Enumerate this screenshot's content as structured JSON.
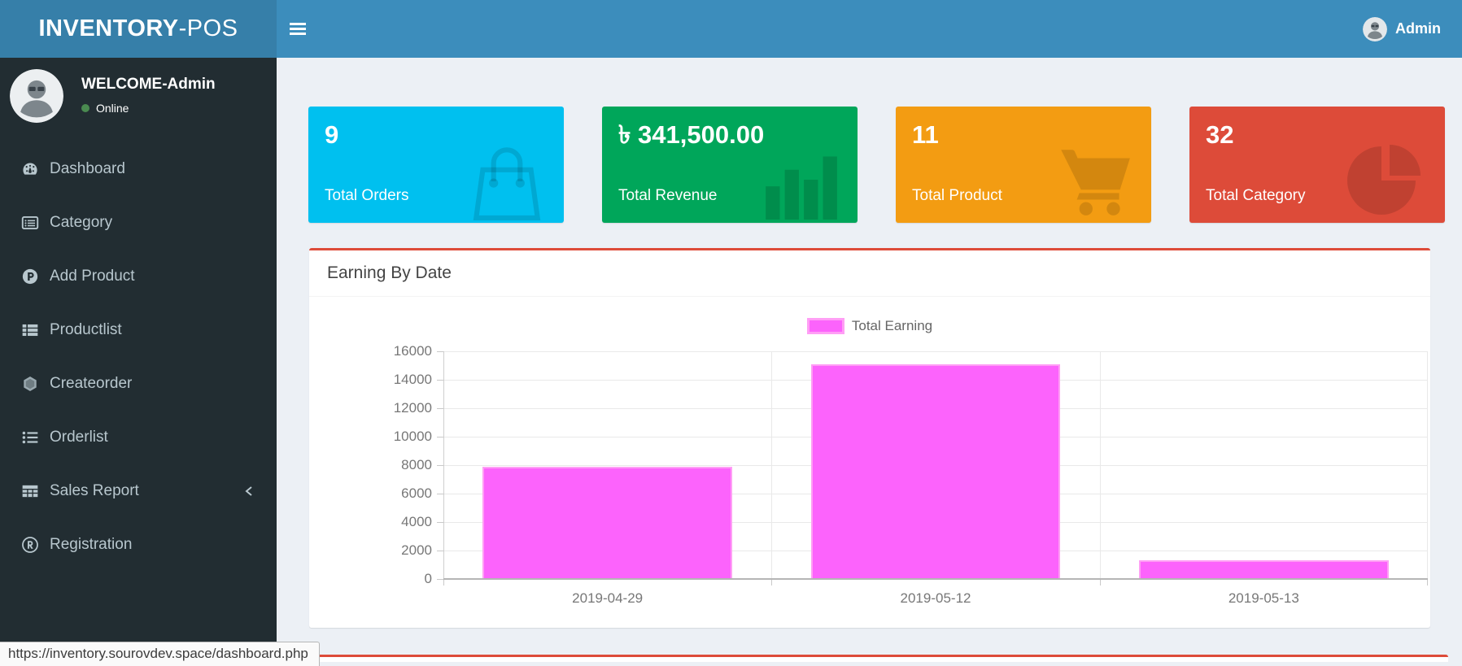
{
  "header": {
    "brand": {
      "bold": "INVENTORY",
      "light": "-POS"
    },
    "user": {
      "name": "Admin",
      "avatar_icon": "user-photo-avatar"
    },
    "menu_toggle_icon": "hamburger-icon"
  },
  "sidebar": {
    "user": {
      "welcome": "WELCOME-Admin",
      "status": "Online",
      "avatar_icon": "user-photo-avatar"
    },
    "items": [
      {
        "label": "Dashboard",
        "icon": "dashboard-icon"
      },
      {
        "label": "Category",
        "icon": "category-icon"
      },
      {
        "label": "Add Product",
        "icon": "add-product-icon"
      },
      {
        "label": "Productlist",
        "icon": "product-list-icon"
      },
      {
        "label": "Createorder",
        "icon": "create-order-icon"
      },
      {
        "label": "Orderlist",
        "icon": "order-list-icon"
      },
      {
        "label": "Sales Report",
        "icon": "sales-report-icon",
        "has_submenu": true,
        "chevron_icon": "chevron-left-icon"
      },
      {
        "label": "Registration",
        "icon": "registration-icon"
      }
    ]
  },
  "cards": [
    {
      "value": "9",
      "label": "Total Orders",
      "color": "#00c0ef",
      "icon": "shopping-bag-icon"
    },
    {
      "value": "৳ 341,500.00",
      "label": "Total Revenue",
      "color": "#00a65a",
      "icon": "bar-chart-icon"
    },
    {
      "value": "11",
      "label": "Total Product",
      "color": "#f39c12",
      "icon": "shopping-cart-icon"
    },
    {
      "value": "32",
      "label": "Total Category",
      "color": "#dd4b39",
      "icon": "pie-chart-icon"
    }
  ],
  "panel": {
    "title": "Earning By Date"
  },
  "chart_data": {
    "type": "bar",
    "title": "Earning By Date",
    "categories": [
      "2019-04-29",
      "2019-05-12",
      "2019-05-13"
    ],
    "series": [
      {
        "name": "Total Earning",
        "values": [
          7900,
          15100,
          1300
        ]
      }
    ],
    "xlabel": "",
    "ylabel": "",
    "ylim": [
      0,
      16000
    ],
    "ytick_step": 2000,
    "grid": true,
    "legend_position": "top",
    "bar_color": "#fc63fc",
    "bar_border_color": "#ff9ef5",
    "bar_percent": 0.76
  },
  "statusbar": {
    "url": "https://inventory.sourovdev.space/dashboard.php"
  },
  "colors": {
    "navbar": "#3c8dbc",
    "logo_bg": "#367fa9",
    "sidebar_bg": "#222d32",
    "content_bg": "#ecf0f5",
    "panel_accent": "#dd4b39",
    "online_dot": "#4a8a50",
    "menu_text": "#b8c7ce"
  }
}
